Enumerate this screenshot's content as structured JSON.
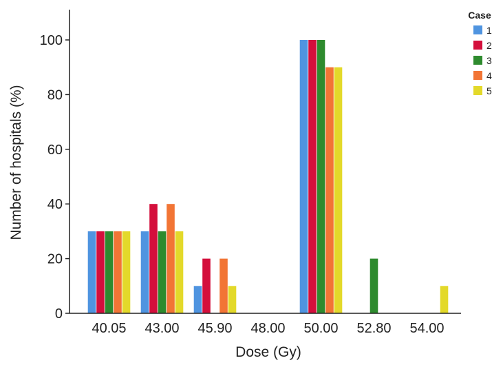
{
  "chart_data": {
    "type": "bar",
    "title": "",
    "xlabel": "Dose (Gy)",
    "ylabel": "Number of hospitals (%)",
    "ylim": [
      0,
      110
    ],
    "yticks": [
      "0",
      "20",
      "40",
      "60",
      "80",
      "100"
    ],
    "categories": [
      "40.05",
      "43.00",
      "45.90",
      "48.00",
      "50.00",
      "52.80",
      "54.00"
    ],
    "legend_title": "Case",
    "legend_position": "top-right",
    "grid": false,
    "series": [
      {
        "name": "1",
        "color": "#4f94e0",
        "values": [
          30,
          30,
          10,
          0,
          100,
          0,
          0
        ]
      },
      {
        "name": "2",
        "color": "#d40f3c",
        "values": [
          30,
          40,
          20,
          0,
          100,
          0,
          0
        ]
      },
      {
        "name": "3",
        "color": "#2e8b2e",
        "values": [
          30,
          30,
          0,
          0,
          100,
          20,
          0
        ]
      },
      {
        "name": "4",
        "color": "#f27535",
        "values": [
          30,
          40,
          20,
          0,
          90,
          0,
          0
        ]
      },
      {
        "name": "5",
        "color": "#e3d92a",
        "values": [
          30,
          30,
          10,
          0,
          90,
          0,
          10
        ]
      }
    ]
  }
}
